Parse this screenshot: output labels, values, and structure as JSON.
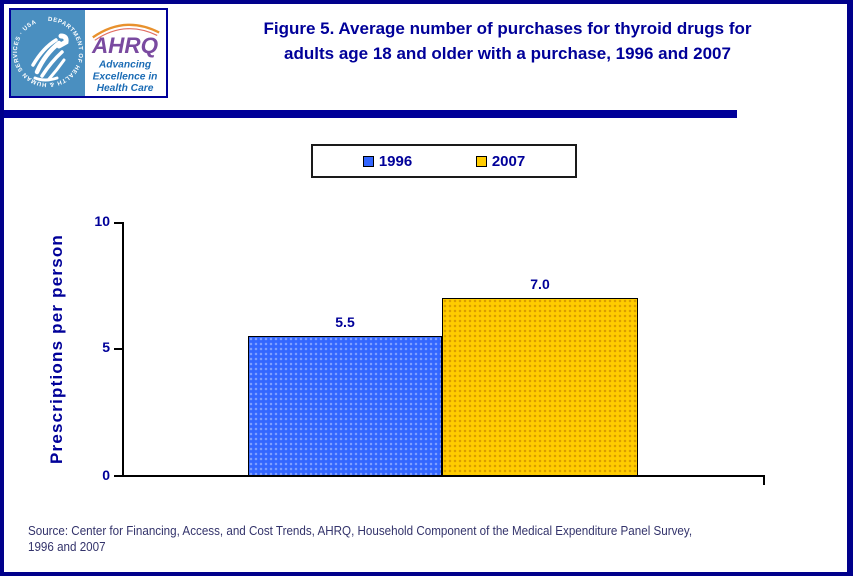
{
  "page": {
    "background": "#ffffff",
    "border_color": "#00008b",
    "accent_navy": "#000099"
  },
  "header": {
    "title_line1": "Figure 5. Average number of purchases for thyroid drugs for",
    "title_line2": "adults age 18 and older with a purchase, 1996 and 2007",
    "title_color": "#000099",
    "logos": {
      "hhs_seal_text": "DEPARTMENT OF HEALTH & HUMAN SERVICES · USA",
      "ahrq_acronym": "AHRQ",
      "ahrq_tagline_line1": "Advancing",
      "ahrq_tagline_line2": "Excellence in",
      "ahrq_tagline_line3": "Health Care"
    }
  },
  "legend": {
    "items": [
      {
        "label": "1996",
        "color": "#3366ff"
      },
      {
        "label": "2007",
        "color": "#ffcc00"
      }
    ]
  },
  "chart_data": {
    "type": "bar",
    "categories": [
      "1996",
      "2007"
    ],
    "values": [
      5.5,
      7.0
    ],
    "value_labels": [
      "5.5",
      "7.0"
    ],
    "colors": [
      "#3366ff",
      "#ffcc00"
    ],
    "title": "Figure 5. Average number of purchases for thyroid drugs for adults age 18 and older with a purchase, 1996 and 2007",
    "xlabel": "",
    "ylabel": "Prescriptions per person",
    "ylim": [
      0,
      10
    ],
    "yticks": [
      10,
      5,
      0
    ],
    "grid": false,
    "legend_position": "top-center"
  },
  "axis": {
    "ylabel": "Prescriptions per person",
    "tick_top": "10",
    "tick_mid": "5",
    "tick_bottom": "0"
  },
  "footer": {
    "source_line1": "Source: Center for Financing, Access, and Cost Trends, AHRQ, Household Component of the Medical Expenditure Panel Survey,",
    "source_line2": "1996 and 2007"
  }
}
